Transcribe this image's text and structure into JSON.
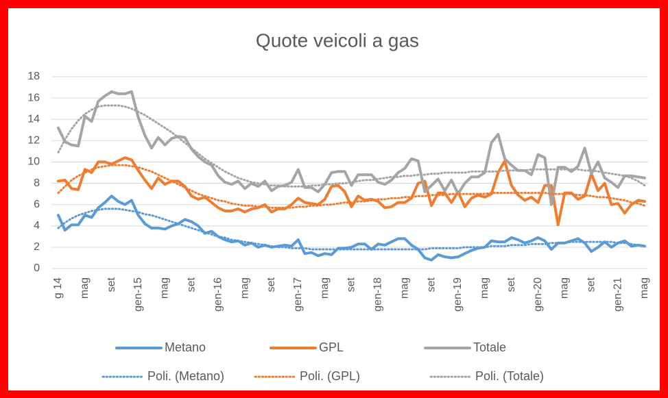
{
  "chart_data": {
    "type": "line",
    "title": "Quote veicoli a gas",
    "categories": [
      "g 14",
      null,
      null,
      null,
      "mag",
      null,
      null,
      null,
      "set",
      null,
      null,
      null,
      "gen-15",
      null,
      null,
      null,
      "mag",
      null,
      null,
      null,
      "set",
      null,
      null,
      null,
      "gen-16",
      null,
      null,
      null,
      "mag",
      null,
      null,
      null,
      "set",
      null,
      null,
      null,
      "gen-17",
      null,
      null,
      null,
      "mag",
      null,
      null,
      null,
      "set",
      null,
      null,
      null,
      "gen-18",
      null,
      null,
      null,
      "mag",
      null,
      null,
      null,
      "set",
      null,
      null,
      null,
      "gen-19",
      null,
      null,
      null,
      "mag",
      null,
      null,
      null,
      "set",
      null,
      null,
      null,
      "gen-20",
      null,
      null,
      null,
      "mag",
      null,
      null,
      null,
      "set",
      null,
      null,
      null,
      "gen-21",
      null,
      null,
      null,
      "mag"
    ],
    "ylim": [
      0,
      18
    ],
    "yticks": [
      0,
      2,
      4,
      6,
      8,
      10,
      12,
      14,
      16,
      18
    ],
    "grid": true,
    "legend": "bottom",
    "series": [
      {
        "name": "Metano",
        "color": "#5b9bd5",
        "style": "solid",
        "values": [
          5.0,
          3.6,
          4.1,
          4.1,
          5.0,
          4.8,
          5.7,
          6.2,
          6.8,
          6.3,
          6.0,
          6.4,
          5.0,
          4.2,
          3.8,
          3.8,
          3.7,
          4.0,
          4.2,
          4.6,
          4.4,
          4.0,
          3.3,
          3.5,
          3.0,
          2.7,
          2.5,
          2.6,
          2.2,
          2.4,
          2.0,
          2.2,
          2.0,
          2.1,
          2.2,
          2.1,
          2.7,
          1.4,
          1.5,
          1.2,
          1.4,
          1.3,
          1.9,
          1.9,
          2.0,
          2.3,
          2.3,
          1.8,
          2.3,
          2.2,
          2.5,
          2.8,
          2.8,
          2.2,
          1.8,
          1.0,
          0.8,
          1.3,
          1.1,
          1.0,
          1.1,
          1.4,
          1.7,
          1.9,
          2.0,
          2.6,
          2.5,
          2.5,
          2.9,
          2.7,
          2.4,
          2.6,
          2.9,
          2.6,
          1.8,
          2.4,
          2.4,
          2.6,
          2.8,
          2.4,
          1.6,
          2.0,
          2.5,
          2.0,
          2.4,
          2.6,
          2.1,
          2.2,
          2.1
        ]
      },
      {
        "name": "GPL",
        "color": "#ed7d31",
        "style": "solid",
        "values": [
          8.2,
          8.3,
          7.5,
          7.4,
          9.3,
          9.0,
          10.0,
          10.0,
          9.8,
          10.1,
          10.4,
          10.2,
          9.2,
          8.3,
          7.5,
          8.5,
          7.9,
          8.2,
          8.2,
          7.7,
          6.8,
          6.5,
          6.7,
          6.2,
          5.7,
          5.4,
          5.4,
          5.6,
          5.3,
          5.6,
          5.7,
          6.0,
          5.3,
          5.6,
          5.6,
          6.0,
          6.6,
          6.2,
          6.1,
          6.0,
          6.5,
          7.7,
          7.8,
          7.2,
          5.8,
          6.8,
          6.4,
          6.5,
          6.3,
          5.7,
          5.8,
          6.2,
          6.2,
          6.6,
          8.0,
          8.2,
          5.9,
          7.1,
          7.1,
          6.2,
          7.2,
          5.8,
          6.6,
          6.9,
          6.7,
          7.0,
          9.0,
          10.1,
          7.8,
          6.9,
          6.4,
          6.7,
          6.2,
          7.8,
          7.8,
          4.1,
          7.1,
          7.1,
          6.5,
          6.8,
          8.9,
          7.3,
          8.0,
          6.0,
          6.1,
          5.2,
          6.0,
          6.4,
          6.3
        ]
      },
      {
        "name": "Totale",
        "color": "#a5a5a5",
        "style": "solid",
        "values": [
          13.2,
          11.9,
          11.6,
          11.5,
          14.3,
          13.8,
          15.7,
          16.2,
          16.6,
          16.4,
          16.4,
          16.6,
          14.2,
          12.5,
          11.3,
          12.3,
          11.6,
          12.2,
          12.4,
          12.3,
          11.2,
          10.5,
          10.0,
          9.7,
          8.7,
          8.1,
          7.9,
          8.2,
          7.5,
          8.0,
          7.7,
          8.2,
          7.3,
          7.7,
          7.8,
          8.1,
          9.3,
          7.6,
          7.6,
          7.2,
          7.9,
          9.0,
          9.1,
          9.1,
          7.8,
          8.8,
          8.8,
          8.8,
          8.1,
          7.9,
          8.3,
          9.0,
          9.4,
          10.3,
          10.1,
          7.2,
          7.8,
          8.4,
          7.3,
          8.3,
          7.0,
          8.0,
          8.6,
          8.6,
          9.0,
          11.8,
          12.6,
          10.3,
          9.7,
          9.2,
          9.2,
          8.8,
          10.7,
          10.4,
          6.0,
          9.5,
          9.5,
          9.1,
          9.6,
          11.3,
          8.9,
          10.0,
          8.5,
          8.1,
          7.6,
          8.7,
          8.7,
          8.6,
          8.5
        ]
      },
      {
        "name": "Poli. (Metano)",
        "color": "#5b9bd5",
        "style": "dotted",
        "values": [
          3.8,
          4.3,
          4.7,
          5.0,
          5.2,
          5.4,
          5.5,
          5.6,
          5.6,
          5.6,
          5.5,
          5.4,
          5.3,
          5.1,
          5.0,
          4.8,
          4.6,
          4.4,
          4.2,
          4.0,
          3.8,
          3.6,
          3.4,
          3.2,
          3.0,
          2.9,
          2.7,
          2.6,
          2.5,
          2.4,
          2.3,
          2.2,
          2.1,
          2.0,
          2.0,
          1.9,
          1.9,
          1.9,
          1.8,
          1.8,
          1.8,
          1.8,
          1.8,
          1.8,
          1.8,
          1.8,
          1.8,
          1.8,
          1.8,
          1.8,
          1.8,
          1.8,
          1.8,
          1.8,
          1.8,
          1.8,
          1.9,
          1.9,
          1.9,
          1.9,
          1.9,
          2.0,
          2.0,
          2.0,
          2.0,
          2.1,
          2.1,
          2.1,
          2.2,
          2.2,
          2.2,
          2.3,
          2.3,
          2.3,
          2.4,
          2.4,
          2.4,
          2.5,
          2.5,
          2.5,
          2.5,
          2.5,
          2.5,
          2.5,
          2.4,
          2.4,
          2.3,
          2.2,
          2.1
        ]
      },
      {
        "name": "Poli. (GPL)",
        "color": "#ed7d31",
        "style": "dotted",
        "values": [
          7.1,
          7.7,
          8.3,
          8.7,
          9.0,
          9.3,
          9.5,
          9.6,
          9.7,
          9.7,
          9.7,
          9.6,
          9.5,
          9.3,
          9.1,
          8.8,
          8.5,
          8.2,
          7.9,
          7.6,
          7.3,
          7.0,
          6.8,
          6.6,
          6.4,
          6.3,
          6.1,
          6.0,
          5.9,
          5.9,
          5.8,
          5.8,
          5.7,
          5.7,
          5.7,
          5.7,
          5.8,
          5.8,
          5.9,
          5.9,
          6.0,
          6.0,
          6.1,
          6.2,
          6.2,
          6.3,
          6.3,
          6.4,
          6.5,
          6.5,
          6.6,
          6.6,
          6.7,
          6.7,
          6.8,
          6.8,
          6.9,
          6.9,
          6.9,
          7.0,
          7.0,
          7.0,
          7.0,
          7.0,
          7.0,
          7.1,
          7.1,
          7.1,
          7.1,
          7.1,
          7.1,
          7.1,
          7.1,
          7.1,
          7.0,
          7.0,
          7.0,
          7.0,
          6.9,
          6.9,
          6.8,
          6.7,
          6.7,
          6.6,
          6.5,
          6.4,
          6.2,
          6.1,
          5.9
        ]
      },
      {
        "name": "Poli. (Totale)",
        "color": "#a5a5a5",
        "style": "dotted",
        "values": [
          10.9,
          12.1,
          13.1,
          13.9,
          14.5,
          14.9,
          15.2,
          15.3,
          15.3,
          15.3,
          15.2,
          15.0,
          14.7,
          14.4,
          14.0,
          13.6,
          13.2,
          12.8,
          12.3,
          11.8,
          11.3,
          10.8,
          10.3,
          9.9,
          9.5,
          9.1,
          8.8,
          8.5,
          8.3,
          8.1,
          8.0,
          7.9,
          7.8,
          7.8,
          7.7,
          7.7,
          7.7,
          7.7,
          7.8,
          7.8,
          7.9,
          7.9,
          8.0,
          8.0,
          8.1,
          8.2,
          8.3,
          8.3,
          8.4,
          8.5,
          8.6,
          8.6,
          8.7,
          8.7,
          8.8,
          8.8,
          8.9,
          8.9,
          9.0,
          9.0,
          9.0,
          9.0,
          9.1,
          9.1,
          9.1,
          9.1,
          9.1,
          9.2,
          9.2,
          9.2,
          9.2,
          9.3,
          9.3,
          9.3,
          9.3,
          9.3,
          9.3,
          9.3,
          9.3,
          9.2,
          9.2,
          9.1,
          9.0,
          8.9,
          8.8,
          8.7,
          8.5,
          8.2,
          7.8
        ]
      }
    ]
  }
}
